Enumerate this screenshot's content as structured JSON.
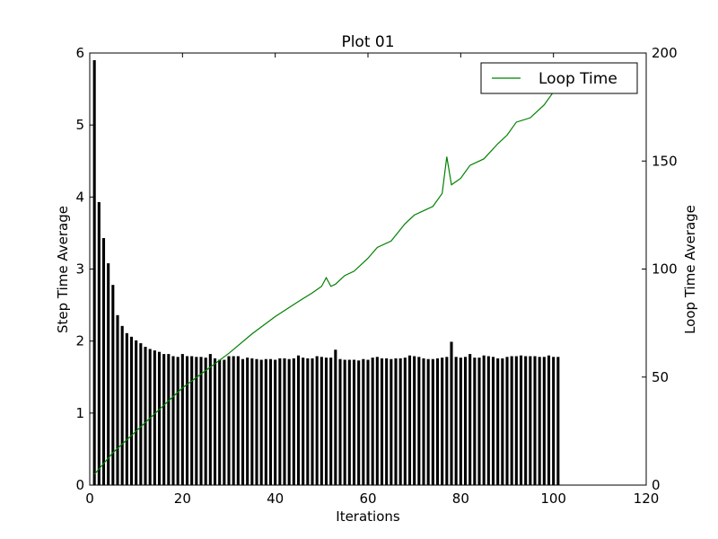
{
  "chart_data": {
    "type": "bar",
    "title": "Plot 01",
    "xlabel": "Iterations",
    "ylabel": "Step Time Average",
    "y2label": "Loop Time Average",
    "xlim": [
      0,
      120
    ],
    "ylim": [
      0,
      6
    ],
    "y2lim": [
      0,
      200
    ],
    "xticks": [
      "0",
      "20",
      "40",
      "60",
      "80",
      "100",
      "120"
    ],
    "yticks": [
      "0",
      "1",
      "2",
      "3",
      "4",
      "5",
      "6"
    ],
    "y2ticks": [
      "0",
      "50",
      "100",
      "150",
      "200"
    ],
    "grid": false,
    "legend": {
      "position": "top-right",
      "entries": [
        "Loop Time"
      ]
    },
    "bar_series": {
      "color": "#000000",
      "x": [
        1,
        2,
        3,
        4,
        5,
        6,
        7,
        8,
        9,
        10,
        11,
        12,
        13,
        14,
        15,
        16,
        17,
        18,
        19,
        20,
        21,
        22,
        23,
        24,
        25,
        26,
        27,
        28,
        29,
        30,
        31,
        32,
        33,
        34,
        35,
        36,
        37,
        38,
        39,
        40,
        41,
        42,
        43,
        44,
        45,
        46,
        47,
        48,
        49,
        50,
        51,
        52,
        53,
        54,
        55,
        56,
        57,
        58,
        59,
        60,
        61,
        62,
        63,
        64,
        65,
        66,
        67,
        68,
        69,
        70,
        71,
        72,
        73,
        74,
        75,
        76,
        77,
        78,
        79,
        80,
        81,
        82,
        83,
        84,
        85,
        86,
        87,
        88,
        89,
        90,
        91,
        92,
        93,
        94,
        95,
        96,
        97,
        98,
        99,
        100,
        101
      ],
      "values": [
        5.9,
        3.93,
        3.43,
        3.08,
        2.78,
        2.36,
        2.21,
        2.11,
        2.06,
        2.01,
        1.97,
        1.92,
        1.89,
        1.87,
        1.85,
        1.82,
        1.82,
        1.79,
        1.78,
        1.82,
        1.79,
        1.79,
        1.78,
        1.78,
        1.77,
        1.82,
        1.76,
        1.74,
        1.74,
        1.79,
        1.79,
        1.79,
        1.75,
        1.77,
        1.76,
        1.75,
        1.74,
        1.75,
        1.75,
        1.74,
        1.76,
        1.76,
        1.75,
        1.76,
        1.8,
        1.77,
        1.76,
        1.76,
        1.79,
        1.78,
        1.77,
        1.77,
        1.88,
        1.75,
        1.74,
        1.74,
        1.74,
        1.73,
        1.75,
        1.74,
        1.77,
        1.78,
        1.76,
        1.76,
        1.75,
        1.76,
        1.76,
        1.77,
        1.8,
        1.79,
        1.78,
        1.76,
        1.75,
        1.75,
        1.76,
        1.77,
        1.78,
        1.99,
        1.78,
        1.77,
        1.78,
        1.82,
        1.77,
        1.77,
        1.8,
        1.79,
        1.78,
        1.76,
        1.76,
        1.78,
        1.79,
        1.79,
        1.8,
        1.79,
        1.79,
        1.79,
        1.78,
        1.78,
        1.8,
        1.78,
        1.78
      ]
    },
    "line_series": {
      "name": "Loop Time",
      "color": "#008000",
      "axis": "right",
      "x": [
        1,
        5,
        10,
        15,
        20,
        25,
        30,
        35,
        40,
        45,
        48,
        50,
        51,
        52,
        53,
        55,
        57,
        60,
        62,
        65,
        68,
        70,
        72,
        74,
        76,
        77,
        78,
        80,
        82,
        85,
        88,
        90,
        92,
        95,
        98,
        100,
        101
      ],
      "values": [
        5,
        15,
        25,
        35,
        45,
        53,
        61,
        70,
        78,
        85,
        89,
        92,
        96,
        92,
        93,
        97,
        99,
        105,
        110,
        113,
        121,
        125,
        127,
        129,
        135,
        152,
        139,
        142,
        148,
        151,
        158,
        162,
        168,
        170,
        176,
        182,
        183
      ]
    }
  }
}
